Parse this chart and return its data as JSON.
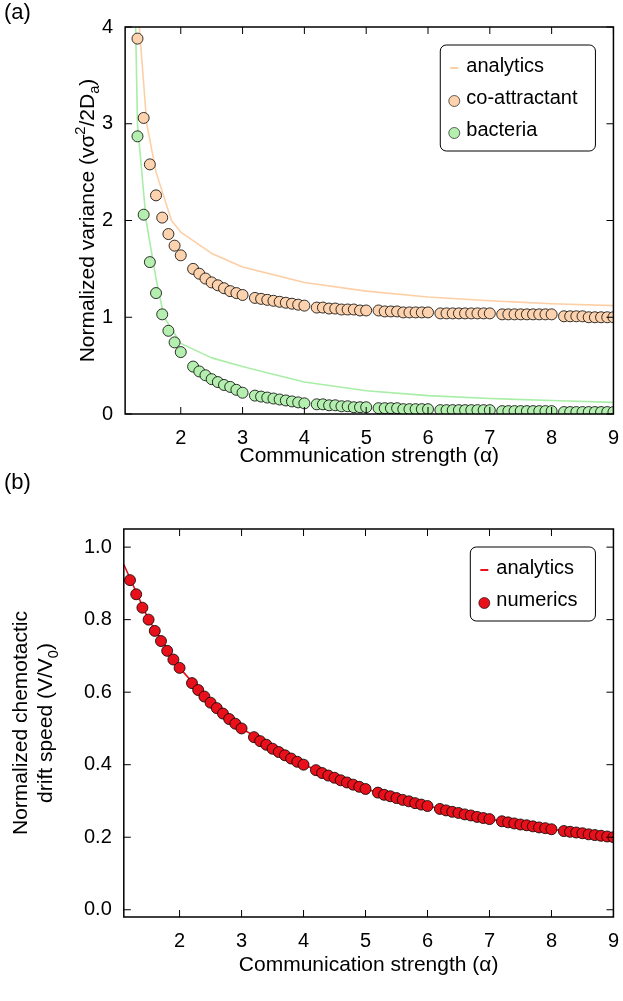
{
  "chart_data": [
    {
      "type": "scatter",
      "title": "(a)",
      "xlabel": "Communication strength (α)",
      "ylabel": "Normalized variance (vσ$^{2}$/2D$_{a}$)",
      "xlim": [
        1.1,
        9
      ],
      "xticks": [
        2,
        3,
        4,
        5,
        6,
        7,
        8,
        9
      ],
      "ylim": [
        0,
        4
      ],
      "yticks": [
        0,
        1,
        2,
        3,
        4
      ],
      "legend": "top right",
      "marker": "circle",
      "series": [
        {
          "name": "analytics",
          "type": "line",
          "marker": "none",
          "color": "#fdcfa6",
          "x": [
            1.33,
            1.45,
            1.6,
            1.85,
            2,
            2.5,
            3,
            4,
            5,
            6,
            7,
            8,
            9
          ],
          "values": [
            4,
            3,
            2.5,
            2.0,
            1.88,
            1.66,
            1.52,
            1.36,
            1.27,
            1.21,
            1.17,
            1.14,
            1.12
          ]
        },
        {
          "name": "co-attractant",
          "color": "#fcd3ae",
          "x": [
            1.3,
            1.4,
            1.5,
            1.6,
            1.7,
            1.8,
            1.9,
            2.0,
            2.2,
            2.3,
            2.4,
            2.5,
            2.6,
            2.7,
            2.8,
            2.9,
            3.0,
            3.2,
            3.3,
            3.4,
            3.5,
            3.6,
            3.7,
            3.8,
            3.9,
            4.0,
            4.2,
            4.3,
            4.4,
            4.5,
            4.6,
            4.7,
            4.8,
            4.9,
            5.0,
            5.2,
            5.3,
            5.4,
            5.5,
            5.6,
            5.7,
            5.8,
            5.9,
            6.0,
            6.2,
            6.3,
            6.4,
            6.5,
            6.6,
            6.7,
            6.8,
            6.9,
            7.0,
            7.2,
            7.3,
            7.4,
            7.5,
            7.6,
            7.7,
            7.8,
            7.9,
            8.0,
            8.2,
            8.3,
            8.4,
            8.5,
            8.6,
            8.7,
            8.8,
            8.9,
            9.0
          ],
          "values": [
            3.88,
            3.06,
            2.58,
            2.26,
            2.03,
            1.86,
            1.74,
            1.64,
            1.5,
            1.45,
            1.4,
            1.36,
            1.33,
            1.3,
            1.27,
            1.25,
            1.23,
            1.2,
            1.19,
            1.18,
            1.17,
            1.16,
            1.15,
            1.14,
            1.13,
            1.12,
            1.1,
            1.1,
            1.09,
            1.09,
            1.08,
            1.08,
            1.08,
            1.07,
            1.07,
            1.07,
            1.06,
            1.06,
            1.06,
            1.05,
            1.05,
            1.05,
            1.05,
            1.05,
            1.04,
            1.04,
            1.04,
            1.04,
            1.04,
            1.04,
            1.04,
            1.04,
            1.04,
            1.03,
            1.03,
            1.03,
            1.03,
            1.03,
            1.03,
            1.03,
            1.03,
            1.03,
            1.01,
            1.01,
            1.01,
            1.01,
            1.0,
            1.0,
            1.0,
            1.0,
            1.0
          ]
        },
        {
          "name": "bacteria",
          "color": "#b4efb0",
          "x": [
            1.3,
            1.4,
            1.5,
            1.6,
            1.7,
            1.8,
            1.9,
            2.0,
            2.2,
            2.3,
            2.4,
            2.5,
            2.6,
            2.7,
            2.8,
            2.9,
            3.0,
            3.2,
            3.3,
            3.4,
            3.5,
            3.6,
            3.7,
            3.8,
            3.9,
            4.0,
            4.2,
            4.3,
            4.4,
            4.5,
            4.6,
            4.7,
            4.8,
            4.9,
            5.0,
            5.2,
            5.3,
            5.4,
            5.5,
            5.6,
            5.7,
            5.8,
            5.9,
            6.0,
            6.2,
            6.3,
            6.4,
            6.5,
            6.6,
            6.7,
            6.8,
            6.9,
            7.0,
            7.2,
            7.3,
            7.4,
            7.5,
            7.6,
            7.7,
            7.8,
            7.9,
            8.0,
            8.2,
            8.3,
            8.4,
            8.5,
            8.6,
            8.7,
            8.8,
            8.9,
            9.0
          ],
          "values": [
            2.87,
            2.06,
            1.57,
            1.25,
            1.03,
            0.86,
            0.74,
            0.64,
            0.49,
            0.44,
            0.4,
            0.36,
            0.33,
            0.3,
            0.28,
            0.25,
            0.22,
            0.19,
            0.18,
            0.17,
            0.16,
            0.15,
            0.14,
            0.13,
            0.12,
            0.11,
            0.1,
            0.1,
            0.09,
            0.09,
            0.08,
            0.08,
            0.07,
            0.07,
            0.07,
            0.06,
            0.06,
            0.06,
            0.06,
            0.05,
            0.05,
            0.05,
            0.05,
            0.05,
            0.04,
            0.04,
            0.04,
            0.04,
            0.04,
            0.04,
            0.04,
            0.04,
            0.04,
            0.03,
            0.03,
            0.03,
            0.03,
            0.03,
            0.03,
            0.03,
            0.03,
            0.03,
            0.02,
            0.02,
            0.02,
            0.02,
            0.02,
            0.02,
            0.02,
            0.02,
            0.02
          ]
        },
        {
          "type": "line",
          "marker": "none",
          "color": "#a8eea6",
          "x": [
            1.27,
            1.3,
            1.44,
            1.6,
            1.73,
            2,
            2.5,
            3,
            4,
            5,
            6,
            7,
            8,
            9
          ],
          "values": [
            4,
            3,
            2,
            1.4,
            1.0,
            0.73,
            0.58,
            0.49,
            0.33,
            0.24,
            0.19,
            0.16,
            0.14,
            0.12
          ]
        }
      ]
    },
    {
      "type": "scatter",
      "title": "(b)",
      "xlabel": "Communication strength (α)",
      "ylabel": "Normalized chemotactic drift speed (V/V$_{0}$)",
      "xlim": [
        1.1,
        9
      ],
      "xticks": [
        2,
        3,
        4,
        5,
        6,
        7,
        8,
        9
      ],
      "ylim": [
        -0.02,
        1.05
      ],
      "yticks": [
        {
          "value": 0,
          "label": "0.0"
        },
        {
          "value": 0.2,
          "label": "0.2"
        },
        {
          "value": 0.4,
          "label": "0.4"
        },
        {
          "value": 0.6,
          "label": "0.6"
        },
        {
          "value": 0.8,
          "label": "0.8"
        },
        {
          "value": 1.0,
          "label": "1.0"
        }
      ],
      "legend": "top right",
      "marker": "circle",
      "series": [
        {
          "name": "analytics",
          "type": "line",
          "marker": "none",
          "color": "#e8101a",
          "x": [
            1.1,
            1.5,
            2,
            2.5,
            3,
            4,
            5,
            6,
            7,
            8,
            9
          ],
          "values": [
            0.952,
            0.8,
            0.667,
            0.571,
            0.5,
            0.4,
            0.333,
            0.286,
            0.25,
            0.222,
            0.2
          ]
        },
        {
          "name": "numerics",
          "color": "#e8101a",
          "x": [
            1.2,
            1.3,
            1.4,
            1.5,
            1.6,
            1.7,
            1.8,
            1.9,
            2.0,
            2.2,
            2.3,
            2.4,
            2.5,
            2.6,
            2.7,
            2.8,
            2.9,
            3.0,
            3.2,
            3.3,
            3.4,
            3.5,
            3.6,
            3.7,
            3.8,
            3.9,
            4.0,
            4.2,
            4.3,
            4.4,
            4.5,
            4.6,
            4.7,
            4.8,
            4.9,
            5.0,
            5.2,
            5.3,
            5.4,
            5.5,
            5.6,
            5.7,
            5.8,
            5.9,
            6.0,
            6.2,
            6.3,
            6.4,
            6.5,
            6.6,
            6.7,
            6.8,
            6.9,
            7.0,
            7.2,
            7.3,
            7.4,
            7.5,
            7.6,
            7.7,
            7.8,
            7.9,
            8.0,
            8.2,
            8.3,
            8.4,
            8.5,
            8.6,
            8.7,
            8.8,
            8.9,
            9.0
          ],
          "values": [
            0.909,
            0.87,
            0.833,
            0.8,
            0.769,
            0.741,
            0.714,
            0.69,
            0.667,
            0.625,
            0.606,
            0.588,
            0.571,
            0.556,
            0.541,
            0.526,
            0.513,
            0.5,
            0.476,
            0.465,
            0.455,
            0.444,
            0.435,
            0.426,
            0.417,
            0.408,
            0.4,
            0.385,
            0.377,
            0.37,
            0.364,
            0.357,
            0.351,
            0.345,
            0.339,
            0.333,
            0.323,
            0.317,
            0.313,
            0.308,
            0.303,
            0.299,
            0.294,
            0.29,
            0.286,
            0.278,
            0.274,
            0.27,
            0.267,
            0.263,
            0.26,
            0.256,
            0.253,
            0.25,
            0.244,
            0.241,
            0.238,
            0.235,
            0.233,
            0.23,
            0.227,
            0.225,
            0.222,
            0.217,
            0.215,
            0.213,
            0.211,
            0.208,
            0.206,
            0.204,
            0.202,
            0.2
          ]
        }
      ]
    }
  ]
}
